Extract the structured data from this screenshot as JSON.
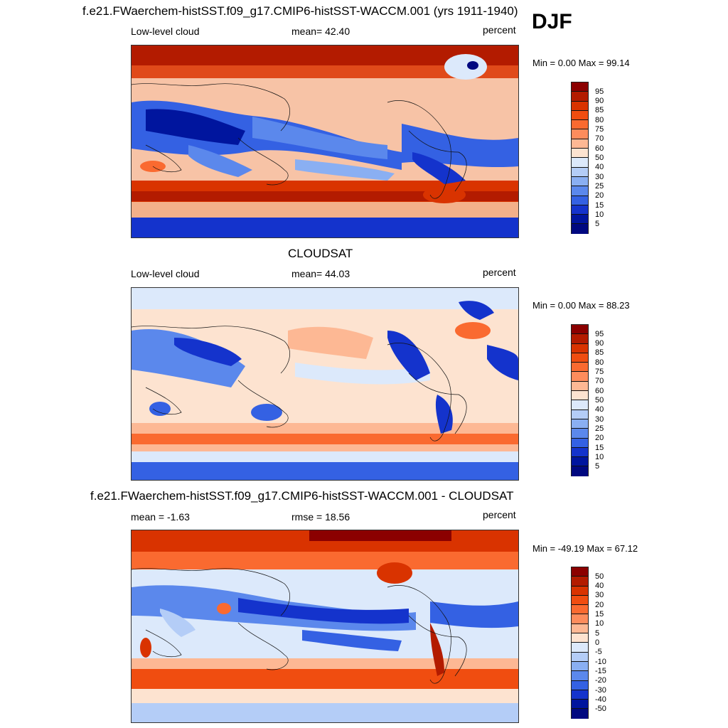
{
  "season": "DJF",
  "panels": [
    {
      "title": "f.e21.FWaerchem-histSST.f09_g17.CMIP6-histSST-WACCM.001 (yrs 1911-1940)",
      "left": "Low-level cloud",
      "center": "mean=  42.40",
      "right": "percent",
      "minmax": "Min =   0.00 Max =  99.14",
      "colorbar_labels": [
        "95",
        "90",
        "85",
        "80",
        "75",
        "70",
        "60",
        "50",
        "40",
        "30",
        "25",
        "20",
        "15",
        "10",
        "5"
      ]
    },
    {
      "title": "CLOUDSAT",
      "left": "Low-level cloud",
      "center": "mean=  44.03",
      "right": "percent",
      "minmax": "Min =   0.00 Max =  88.23",
      "colorbar_labels": [
        "95",
        "90",
        "85",
        "80",
        "75",
        "70",
        "60",
        "50",
        "40",
        "30",
        "25",
        "20",
        "15",
        "10",
        "5"
      ]
    },
    {
      "title": "f.e21.FWaerchem-histSST.f09_g17.CMIP6-histSST-WACCM.001 - CLOUDSAT",
      "left": "mean =  -1.63",
      "center": "rmse =  18.56",
      "right": "percent",
      "minmax": "Min = -49.19 Max =  67.12",
      "colorbar_labels": [
        "50",
        "40",
        "30",
        "20",
        "15",
        "10",
        "5",
        "0",
        "-5",
        "-10",
        "-15",
        "-20",
        "-30",
        "-40",
        "-50"
      ]
    }
  ],
  "palette": [
    "#8b0000",
    "#b31b00",
    "#d93300",
    "#f04d10",
    "#fa6a30",
    "#fd8c5c",
    "#fdb894",
    "#fde3d0",
    "#dce9fb",
    "#b4cdf7",
    "#8aaff2",
    "#5b88ec",
    "#3461e3",
    "#1433cc",
    "#00159e",
    "#000880"
  ]
}
